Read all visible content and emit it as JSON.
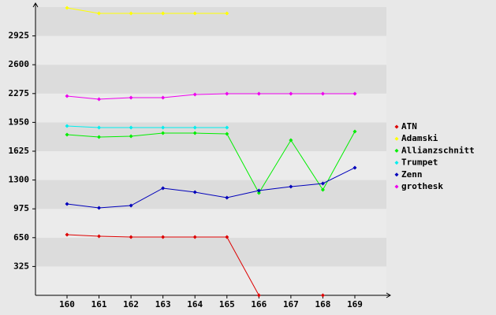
{
  "chart_data": {
    "type": "line",
    "categories": [
      "160",
      "161",
      "162",
      "163",
      "164",
      "165",
      "166",
      "167",
      "168",
      "169"
    ],
    "series": [
      {
        "name": "ATN",
        "color": "#dd0000",
        "values": [
          684,
          666,
          657,
          657,
          657,
          657,
          0,
          null,
          0,
          null
        ]
      },
      {
        "name": "Adamski",
        "color": "#ffff00",
        "values": [
          3241,
          3179,
          3179,
          3179,
          3179,
          3179,
          null,
          null,
          null,
          null
        ]
      },
      {
        "name": "Allianzschnitt",
        "color": "#00ee00",
        "values": [
          1811,
          1785,
          1794,
          1829,
          1829,
          1820,
          1154,
          1749,
          1190,
          1847
        ]
      },
      {
        "name": "Trumpet",
        "color": "#00eeee",
        "values": [
          1909,
          1891,
          1891,
          1891,
          1891,
          1891,
          null,
          null,
          null,
          null
        ]
      },
      {
        "name": "Zenn",
        "color": "#0000bb",
        "values": [
          1030,
          986,
          1012,
          1208,
          1163,
          1101,
          1181,
          1225,
          1261,
          1439
        ]
      },
      {
        "name": "grothesk",
        "color": "#ee00ee",
        "values": [
          2247,
          2211,
          2229,
          2229,
          2264,
          2273,
          2273,
          2273,
          2273,
          2273
        ]
      }
    ],
    "ylim": [
      0,
      3250
    ],
    "yticks": [
      325,
      650,
      975,
      1300,
      1625,
      1950,
      2275,
      2600,
      2925
    ]
  }
}
